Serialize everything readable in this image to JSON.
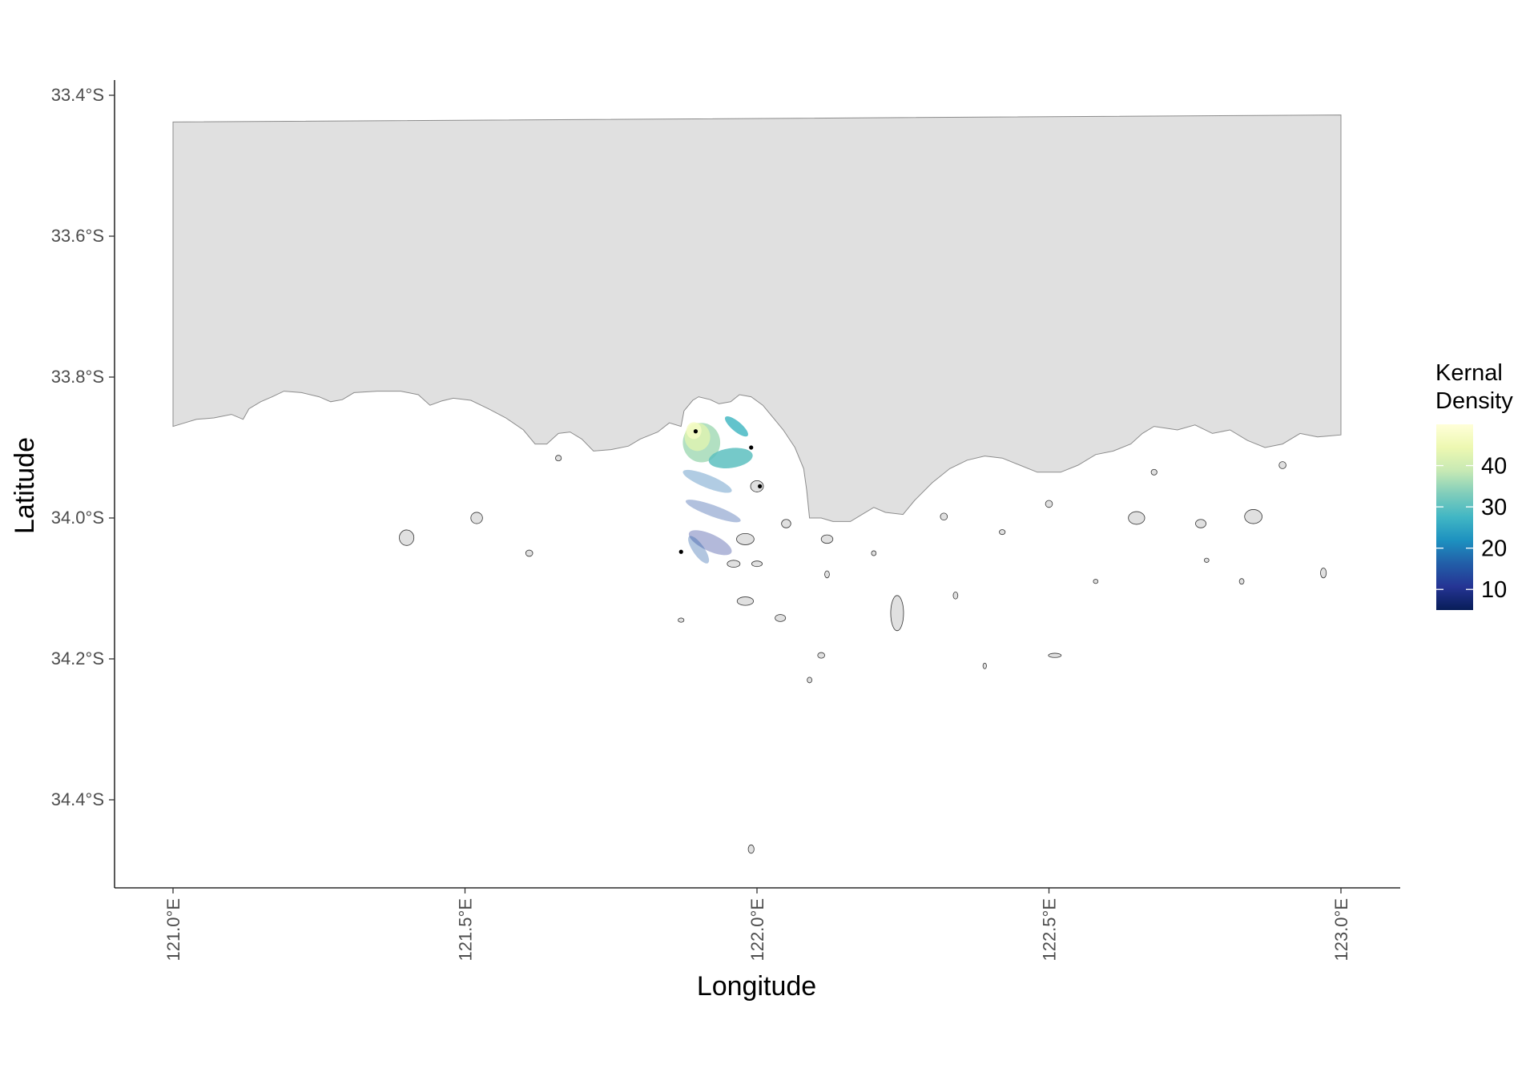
{
  "chart_data": {
    "type": "map",
    "title": "",
    "xlabel": "Longitude",
    "ylabel": "Latitude",
    "xlim": [
      120.9,
      123.1
    ],
    "ylim": [
      -34.53,
      -33.38
    ],
    "x_ticks": [
      {
        "value": 121.0,
        "label": "121.0°E"
      },
      {
        "value": 121.5,
        "label": "121.5°E"
      },
      {
        "value": 122.0,
        "label": "122.0°E"
      },
      {
        "value": 122.5,
        "label": "122.5°E"
      },
      {
        "value": 123.0,
        "label": "123.0°E"
      }
    ],
    "y_ticks": [
      {
        "value": -33.4,
        "label": "33.4°S"
      },
      {
        "value": -33.6,
        "label": "33.6°S"
      },
      {
        "value": -33.8,
        "label": "33.8°S"
      },
      {
        "value": -34.0,
        "label": "34.0°S"
      },
      {
        "value": -34.2,
        "label": "34.2°S"
      },
      {
        "value": -34.4,
        "label": "34.4°S"
      }
    ],
    "grid": false,
    "legend": {
      "title_lines": [
        "Kernal",
        "Density"
      ],
      "placement": "right",
      "range": [
        5,
        50
      ],
      "breaks": [
        {
          "value": 40,
          "label": "40"
        },
        {
          "value": 30,
          "label": "30"
        },
        {
          "value": 20,
          "label": "20"
        },
        {
          "value": 10,
          "label": "10"
        }
      ],
      "colors": [
        "#081d58",
        "#253494",
        "#225ea8",
        "#1d91c0",
        "#41b6c4",
        "#7fcdbb",
        "#c7e9b4",
        "#edf8b1",
        "#ffffd9"
      ]
    },
    "land_color": "#e0e0e0",
    "land_outline_color": "#8c8c8c",
    "mainland": [
      [
        121.0,
        -33.438
      ],
      [
        123.0,
        -33.428
      ],
      [
        123.0,
        -33.882
      ],
      [
        122.96,
        -33.885
      ],
      [
        122.93,
        -33.88
      ],
      [
        122.9,
        -33.895
      ],
      [
        122.87,
        -33.9
      ],
      [
        122.84,
        -33.89
      ],
      [
        122.81,
        -33.875
      ],
      [
        122.78,
        -33.88
      ],
      [
        122.75,
        -33.868
      ],
      [
        122.72,
        -33.875
      ],
      [
        122.68,
        -33.87
      ],
      [
        122.66,
        -33.88
      ],
      [
        122.64,
        -33.895
      ],
      [
        122.61,
        -33.905
      ],
      [
        122.58,
        -33.91
      ],
      [
        122.55,
        -33.925
      ],
      [
        122.52,
        -33.935
      ],
      [
        122.48,
        -33.935
      ],
      [
        122.45,
        -33.925
      ],
      [
        122.42,
        -33.915
      ],
      [
        122.39,
        -33.912
      ],
      [
        122.36,
        -33.918
      ],
      [
        122.33,
        -33.93
      ],
      [
        122.3,
        -33.95
      ],
      [
        122.27,
        -33.975
      ],
      [
        122.25,
        -33.995
      ],
      [
        122.22,
        -33.992
      ],
      [
        122.2,
        -33.985
      ],
      [
        122.18,
        -33.995
      ],
      [
        122.16,
        -34.005
      ],
      [
        122.13,
        -34.005
      ],
      [
        122.11,
        -34.0
      ],
      [
        122.09,
        -34.0
      ],
      [
        122.085,
        -33.96
      ],
      [
        122.08,
        -33.93
      ],
      [
        122.065,
        -33.9
      ],
      [
        122.045,
        -33.875
      ],
      [
        122.03,
        -33.86
      ],
      [
        122.01,
        -33.84
      ],
      [
        121.99,
        -33.828
      ],
      [
        121.97,
        -33.825
      ],
      [
        121.955,
        -33.835
      ],
      [
        121.935,
        -33.838
      ],
      [
        121.92,
        -33.832
      ],
      [
        121.9,
        -33.828
      ],
      [
        121.89,
        -33.833
      ],
      [
        121.875,
        -33.848
      ],
      [
        121.87,
        -33.87
      ],
      [
        121.85,
        -33.865
      ],
      [
        121.83,
        -33.878
      ],
      [
        121.8,
        -33.888
      ],
      [
        121.78,
        -33.898
      ],
      [
        121.75,
        -33.903
      ],
      [
        121.72,
        -33.905
      ],
      [
        121.7,
        -33.888
      ],
      [
        121.68,
        -33.878
      ],
      [
        121.66,
        -33.88
      ],
      [
        121.64,
        -33.895
      ],
      [
        121.62,
        -33.895
      ],
      [
        121.6,
        -33.875
      ],
      [
        121.57,
        -33.858
      ],
      [
        121.54,
        -33.845
      ],
      [
        121.51,
        -33.833
      ],
      [
        121.48,
        -33.83
      ],
      [
        121.46,
        -33.834
      ],
      [
        121.44,
        -33.84
      ],
      [
        121.42,
        -33.825
      ],
      [
        121.39,
        -33.82
      ],
      [
        121.35,
        -33.82
      ],
      [
        121.31,
        -33.822
      ],
      [
        121.29,
        -33.832
      ],
      [
        121.27,
        -33.835
      ],
      [
        121.25,
        -33.828
      ],
      [
        121.22,
        -33.822
      ],
      [
        121.19,
        -33.82
      ],
      [
        121.17,
        -33.828
      ],
      [
        121.15,
        -33.835
      ],
      [
        121.13,
        -33.845
      ],
      [
        121.12,
        -33.86
      ],
      [
        121.1,
        -33.853
      ],
      [
        121.07,
        -33.858
      ],
      [
        121.04,
        -33.86
      ],
      [
        121.02,
        -33.865
      ],
      [
        121.0,
        -33.87
      ]
    ],
    "islands": [
      {
        "lon": 121.4,
        "lat": -34.028,
        "w": 0.025,
        "h": 0.022
      },
      {
        "lon": 121.52,
        "lat": -34.0,
        "w": 0.02,
        "h": 0.016
      },
      {
        "lon": 121.61,
        "lat": -34.05,
        "w": 0.012,
        "h": 0.009
      },
      {
        "lon": 121.66,
        "lat": -33.915,
        "w": 0.01,
        "h": 0.008
      },
      {
        "lon": 121.98,
        "lat": -34.03,
        "w": 0.03,
        "h": 0.016
      },
      {
        "lon": 121.96,
        "lat": -34.065,
        "w": 0.022,
        "h": 0.01
      },
      {
        "lon": 122.0,
        "lat": -34.065,
        "w": 0.018,
        "h": 0.008
      },
      {
        "lon": 122.0,
        "lat": -33.955,
        "w": 0.022,
        "h": 0.016
      },
      {
        "lon": 122.05,
        "lat": -34.008,
        "w": 0.016,
        "h": 0.012
      },
      {
        "lon": 122.12,
        "lat": -34.03,
        "w": 0.02,
        "h": 0.012
      },
      {
        "lon": 121.98,
        "lat": -34.118,
        "w": 0.028,
        "h": 0.012
      },
      {
        "lon": 122.04,
        "lat": -34.142,
        "w": 0.018,
        "h": 0.01
      },
      {
        "lon": 122.24,
        "lat": -34.135,
        "w": 0.022,
        "h": 0.05
      },
      {
        "lon": 122.32,
        "lat": -33.998,
        "w": 0.012,
        "h": 0.01
      },
      {
        "lon": 122.5,
        "lat": -33.98,
        "w": 0.012,
        "h": 0.01
      },
      {
        "lon": 122.65,
        "lat": -34.0,
        "w": 0.028,
        "h": 0.018
      },
      {
        "lon": 122.76,
        "lat": -34.008,
        "w": 0.018,
        "h": 0.012
      },
      {
        "lon": 122.85,
        "lat": -33.998,
        "w": 0.03,
        "h": 0.02
      },
      {
        "lon": 122.9,
        "lat": -33.925,
        "w": 0.012,
        "h": 0.01
      },
      {
        "lon": 122.97,
        "lat": -34.078,
        "w": 0.01,
        "h": 0.014
      },
      {
        "lon": 122.51,
        "lat": -34.195,
        "w": 0.022,
        "h": 0.006
      },
      {
        "lon": 122.34,
        "lat": -34.11,
        "w": 0.008,
        "h": 0.01
      },
      {
        "lon": 122.12,
        "lat": -34.08,
        "w": 0.008,
        "h": 0.01
      },
      {
        "lon": 122.11,
        "lat": -34.195,
        "w": 0.012,
        "h": 0.008
      },
      {
        "lon": 121.99,
        "lat": -34.47,
        "w": 0.01,
        "h": 0.012
      },
      {
        "lon": 121.87,
        "lat": -34.145,
        "w": 0.01,
        "h": 0.006
      },
      {
        "lon": 122.09,
        "lat": -34.23,
        "w": 0.008,
        "h": 0.008
      },
      {
        "lon": 122.2,
        "lat": -34.05,
        "w": 0.008,
        "h": 0.007
      },
      {
        "lon": 122.42,
        "lat": -34.02,
        "w": 0.01,
        "h": 0.007
      },
      {
        "lon": 122.58,
        "lat": -34.09,
        "w": 0.008,
        "h": 0.006
      },
      {
        "lon": 122.77,
        "lat": -34.06,
        "w": 0.008,
        "h": 0.006
      },
      {
        "lon": 122.83,
        "lat": -34.09,
        "w": 0.008,
        "h": 0.008
      },
      {
        "lon": 122.68,
        "lat": -33.935,
        "w": 0.01,
        "h": 0.008
      },
      {
        "lon": 122.39,
        "lat": -34.21,
        "w": 0.006,
        "h": 0.008
      }
    ],
    "density_layers": [
      {
        "lon": 121.905,
        "lat": -33.893,
        "rx": 0.032,
        "ry": 0.028,
        "rot": 0,
        "value": 36
      },
      {
        "lon": 121.898,
        "lat": -33.885,
        "rx": 0.022,
        "ry": 0.02,
        "rot": 0,
        "value": 42
      },
      {
        "lon": 121.892,
        "lat": -33.876,
        "rx": 0.013,
        "ry": 0.012,
        "rot": 0,
        "value": 47
      },
      {
        "lon": 121.955,
        "lat": -33.915,
        "rx": 0.038,
        "ry": 0.014,
        "rot": -8,
        "value": 30
      },
      {
        "lon": 121.965,
        "lat": -33.87,
        "rx": 0.025,
        "ry": 0.007,
        "rot": 40,
        "value": 28
      },
      {
        "lon": 121.915,
        "lat": -33.948,
        "rx": 0.045,
        "ry": 0.009,
        "rot": 22,
        "value": 18
      },
      {
        "lon": 121.925,
        "lat": -33.99,
        "rx": 0.05,
        "ry": 0.008,
        "rot": 20,
        "value": 14
      },
      {
        "lon": 121.92,
        "lat": -34.035,
        "rx": 0.04,
        "ry": 0.012,
        "rot": 25,
        "value": 11
      },
      {
        "lon": 121.9,
        "lat": -34.045,
        "rx": 0.028,
        "ry": 0.008,
        "rot": 55,
        "value": 16
      }
    ],
    "points": [
      {
        "lon": 121.895,
        "lat": -33.877
      },
      {
        "lon": 121.99,
        "lat": -33.9
      },
      {
        "lon": 122.005,
        "lat": -33.955
      },
      {
        "lon": 121.87,
        "lat": -34.048
      }
    ]
  }
}
